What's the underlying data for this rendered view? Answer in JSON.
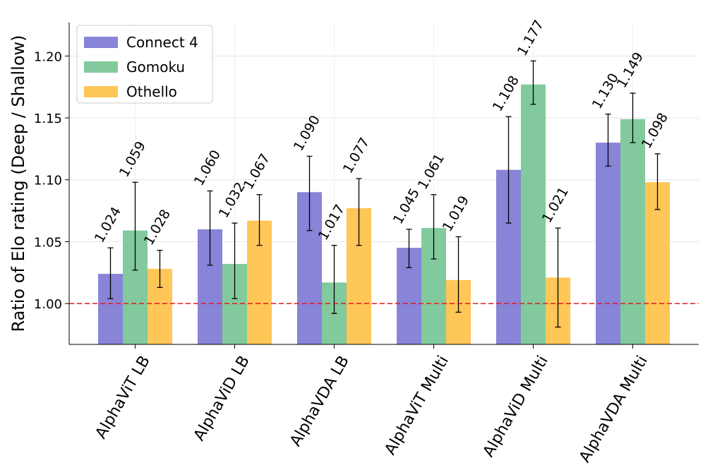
{
  "chart_data": {
    "type": "bar",
    "categories": [
      "AlphaViT LB",
      "AlphaViD LB",
      "AlphaVDA LB",
      "AlphaViT Multi",
      "AlphaViD Multi",
      "AlphaVDA Multi"
    ],
    "series": [
      {
        "name": "Connect 4",
        "color": "#8884d8",
        "values": [
          1.024,
          1.06,
          1.09,
          1.045,
          1.108,
          1.13
        ],
        "labels": [
          "1.024",
          "1.060",
          "1.090",
          "1.045",
          "1.108",
          "1.130"
        ],
        "err_low": [
          1.004,
          1.031,
          1.059,
          1.029,
          1.065,
          1.111
        ],
        "err_high": [
          1.045,
          1.091,
          1.119,
          1.06,
          1.151,
          1.153
        ]
      },
      {
        "name": "Gomoku",
        "color": "#82ca9d",
        "values": [
          1.059,
          1.032,
          1.017,
          1.061,
          1.177,
          1.149
        ],
        "labels": [
          "1.059",
          "1.032",
          "1.017",
          "1.061",
          "1.177",
          "1.149"
        ],
        "err_low": [
          1.027,
          1.004,
          0.992,
          1.036,
          1.161,
          1.13
        ],
        "err_high": [
          1.098,
          1.065,
          1.047,
          1.088,
          1.196,
          1.17
        ]
      },
      {
        "name": "Othello",
        "color": "#ffc658",
        "values": [
          1.028,
          1.067,
          1.077,
          1.019,
          1.021,
          1.098
        ],
        "labels": [
          "1.028",
          "1.067",
          "1.077",
          "1.019",
          "1.021",
          "1.098"
        ],
        "err_low": [
          1.013,
          1.047,
          1.047,
          0.993,
          0.981,
          1.076
        ],
        "err_high": [
          1.043,
          1.088,
          1.101,
          1.054,
          1.061,
          1.121
        ]
      }
    ],
    "ylabel": "Ratio of Elo rating (Deep / Shallow)",
    "xlabel": "",
    "ylim": [
      0.967,
      1.227
    ],
    "yticks": [
      "1.00",
      "1.05",
      "1.10",
      "1.15",
      "1.20"
    ],
    "reference_line": {
      "value": 1.0,
      "color": "#e31a1c",
      "style": "dashed"
    },
    "grid": true,
    "legend": "top-left"
  }
}
